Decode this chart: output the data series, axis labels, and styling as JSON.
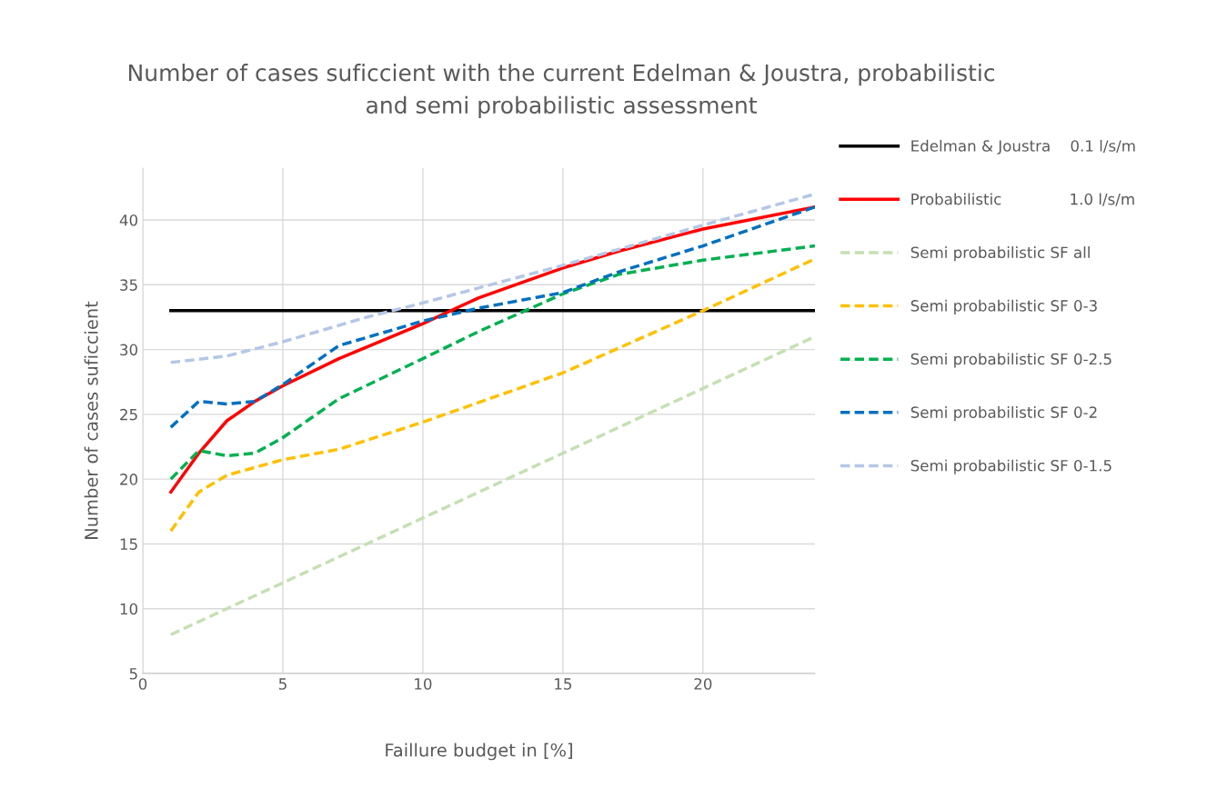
{
  "chart_data": {
    "type": "line",
    "title": "Number of cases suficcient with the current Edelman & Joustra, probabilistic\nand semi probabilistic assessment",
    "xlabel": "Faillure budget in [%]",
    "ylabel": "Number of cases suficcient",
    "xlim": [
      0,
      24
    ],
    "xticks": [
      0,
      5,
      10,
      15,
      20
    ],
    "ylim": [
      5,
      44
    ],
    "yticks": [
      5,
      10,
      15,
      20,
      25,
      30,
      35,
      40
    ],
    "grid": true,
    "legend": "right",
    "marker": "none",
    "series": [
      {
        "name": "Edelman & Joustra    0.1 l/s/m",
        "color": "#000000",
        "line_style": "solid",
        "x": [
          1,
          24
        ],
        "values": [
          33,
          33
        ]
      },
      {
        "name": "Probabilistic              1.0 l/s/m",
        "color": "#ff0000",
        "line_style": "solid",
        "x": [
          1,
          2,
          3,
          4,
          5,
          7,
          10,
          12,
          15,
          17,
          20,
          24
        ],
        "values": [
          19,
          22,
          24.5,
          26,
          27.2,
          29.3,
          32,
          34,
          36.3,
          37.6,
          39.3,
          41
        ]
      },
      {
        "name": "Semi probabilistic SF all",
        "color": "#c5e0b4",
        "line_style": "dashed",
        "x": [
          1,
          5,
          10,
          15,
          20,
          24
        ],
        "values": [
          8,
          12,
          17,
          22,
          27,
          31
        ]
      },
      {
        "name": "Semi probabilistic SF 0-3",
        "color": "#ffc000",
        "line_style": "dashed",
        "x": [
          1,
          2,
          3,
          5,
          7,
          10,
          15,
          20,
          24
        ],
        "values": [
          16,
          19,
          20.3,
          21.5,
          22.3,
          24.4,
          28.2,
          33,
          37
        ]
      },
      {
        "name": "Semi probabilistic SF 0-2.5",
        "color": "#00b050",
        "line_style": "dashed",
        "x": [
          1,
          2,
          3,
          4,
          5,
          7,
          10,
          12,
          15,
          17,
          20,
          24
        ],
        "values": [
          20,
          22.2,
          21.8,
          22,
          23.2,
          26.2,
          29.3,
          31.4,
          34.3,
          35.8,
          36.9,
          38
        ]
      },
      {
        "name": "Semi probabilistic SF 0-2",
        "color": "#0070c0",
        "line_style": "dashed",
        "x": [
          1,
          2,
          3,
          4,
          5,
          7,
          10,
          12,
          15,
          17,
          20,
          24
        ],
        "values": [
          24,
          26,
          25.8,
          26,
          27.3,
          30.3,
          32.2,
          33.2,
          34.4,
          36,
          38,
          41
        ]
      },
      {
        "name": "Semi probabilistic SF 0-1.5",
        "color": "#b4c7e7",
        "line_style": "dashed",
        "x": [
          1,
          3,
          5,
          8,
          10,
          15,
          20,
          24
        ],
        "values": [
          29,
          29.5,
          30.6,
          32.5,
          33.6,
          36.5,
          39.6,
          42
        ]
      }
    ]
  }
}
